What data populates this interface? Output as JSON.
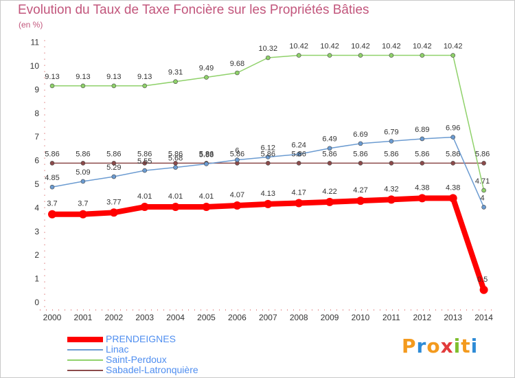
{
  "chart_data": {
    "type": "line",
    "title": "Evolution du Taux de Taxe Foncière sur les Propriétés Bâties",
    "subtitle": "(en %)",
    "xlabel": "",
    "ylabel": "",
    "x": [
      "2000",
      "2001",
      "2002",
      "2003",
      "2004",
      "2005",
      "2006",
      "2007",
      "2008",
      "2009",
      "2010",
      "2011",
      "2012",
      "2013",
      "2014"
    ],
    "ylim": [
      0,
      11
    ],
    "yticks": [
      "0",
      "1",
      "2",
      "3",
      "4",
      "5",
      "6",
      "7",
      "8",
      "9",
      "10",
      "11"
    ],
    "grid": false,
    "legend_position": "bottom-left",
    "series": [
      {
        "name": "PRENDEIGNES",
        "color": "#ff0000",
        "values": [
          3.7,
          3.7,
          3.77,
          4.01,
          4.01,
          4.01,
          4.07,
          4.13,
          4.17,
          4.22,
          4.27,
          4.32,
          4.38,
          4.38,
          0.5
        ],
        "labels": [
          "3.7",
          "3.7",
          "3.77",
          "4.01",
          "4.01",
          "4.01",
          "4.07",
          "4.13",
          "4.17",
          "4.22",
          "4.27",
          "4.32",
          "4.38",
          "4.38",
          "0.5"
        ]
      },
      {
        "name": "Linac",
        "color": "#6b9bd1",
        "values": [
          4.85,
          5.09,
          5.29,
          5.55,
          5.68,
          5.83,
          6.0,
          6.12,
          6.24,
          6.49,
          6.69,
          6.79,
          6.89,
          6.96,
          4.0
        ],
        "labels": [
          "4.85",
          "5.09",
          "5.29",
          "5.55",
          "5.68",
          "5.83",
          "6",
          "6.12",
          "6.24",
          "6.49",
          "6.69",
          "6.79",
          "6.89",
          "6.96",
          "4"
        ]
      },
      {
        "name": "Saint-Perdoux",
        "color": "#8fd16a",
        "values": [
          9.13,
          9.13,
          9.13,
          9.13,
          9.31,
          9.49,
          9.68,
          10.32,
          10.42,
          10.42,
          10.42,
          10.42,
          10.42,
          10.42,
          4.71
        ],
        "labels": [
          "9.13",
          "9.13",
          "9.13",
          "9.13",
          "9.31",
          "9.49",
          "9.68",
          "10.32",
          "10.42",
          "10.42",
          "10.42",
          "10.42",
          "10.42",
          "10.42",
          "4.71"
        ]
      },
      {
        "name": "Sabadel-Latronquière",
        "color": "#8b4a4a",
        "values": [
          5.86,
          5.86,
          5.86,
          5.86,
          5.86,
          5.86,
          5.86,
          5.86,
          5.86,
          5.86,
          5.86,
          5.86,
          5.86,
          5.86,
          5.86
        ],
        "labels": [
          "5.86",
          "5.86",
          "5.86",
          "5.86",
          "5.86",
          "5.86",
          "5.86",
          "5.86",
          "5.86",
          "5.86",
          "5.86",
          "5.86",
          "5.86",
          "5.86",
          "5.86"
        ]
      }
    ]
  },
  "logo": {
    "text": "Proxiti"
  }
}
